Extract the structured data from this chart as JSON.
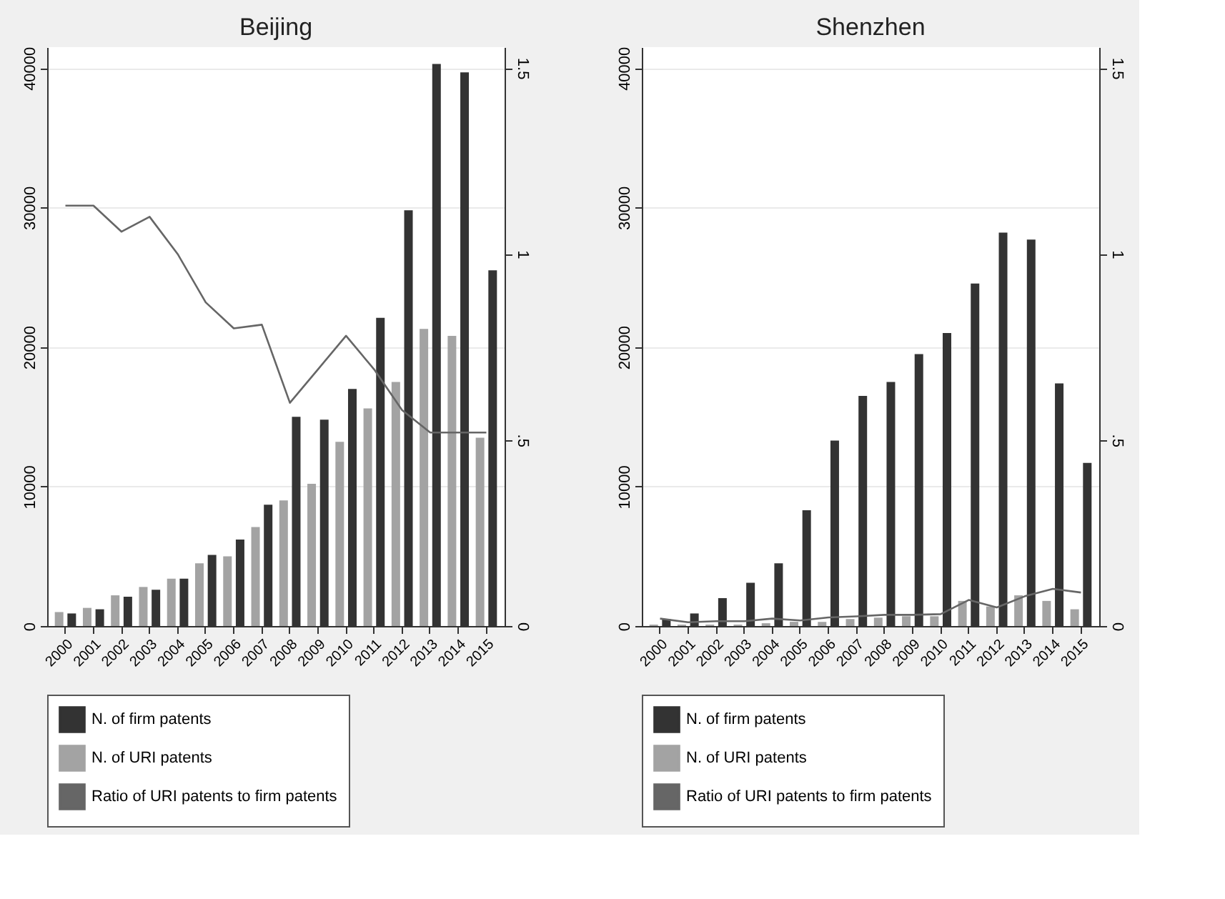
{
  "chart_data": [
    {
      "type": "bar",
      "title": "Beijing",
      "categories": [
        "2000",
        "2001",
        "2002",
        "2003",
        "2004",
        "2005",
        "2006",
        "2007",
        "2008",
        "2009",
        "2010",
        "2011",
        "2012",
        "2013",
        "2014",
        "2015"
      ],
      "series": [
        {
          "name": "N. of firm patents",
          "color": "#333333",
          "values": [
            900,
            1200,
            2100,
            2600,
            3400,
            5100,
            6200,
            8700,
            15000,
            14800,
            17000,
            22100,
            29800,
            40300,
            39700,
            25500
          ]
        },
        {
          "name": "N. of URI patents",
          "color": "#a3a3a3",
          "values": [
            1000,
            1300,
            2200,
            2800,
            3400,
            4500,
            5000,
            7100,
            9000,
            10200,
            13200,
            15600,
            17500,
            21300,
            20800,
            13500
          ]
        },
        {
          "name": "Ratio of URI patents to firm patents",
          "color": "#666666",
          "type": "line",
          "axis": "y2",
          "values": [
            1.13,
            1.13,
            1.06,
            1.1,
            1.0,
            0.87,
            0.8,
            0.81,
            0.6,
            0.69,
            0.78,
            0.69,
            0.58,
            0.52,
            0.52,
            0.52
          ]
        }
      ],
      "ylim": [
        0,
        41500
      ],
      "yticks": [
        0,
        10000,
        20000,
        30000,
        40000
      ],
      "y2lim": [
        0,
        1.556
      ],
      "y2ticks": [
        0,
        {
          "value": 0.5,
          "label": ".5"
        },
        1,
        1.5
      ],
      "grid": "y",
      "legend": "bottom"
    },
    {
      "type": "bar",
      "title": "Shenzhen",
      "categories": [
        "2000",
        "2001",
        "2002",
        "2003",
        "2004",
        "2005",
        "2006",
        "2007",
        "2008",
        "2009",
        "2010",
        "2011",
        "2012",
        "2013",
        "2014",
        "2015"
      ],
      "series": [
        {
          "name": "N. of firm patents",
          "color": "#333333",
          "values": [
            500,
            900,
            2000,
            3100,
            4500,
            8300,
            13300,
            16500,
            17500,
            19500,
            21000,
            24550,
            28200,
            27700,
            17400,
            11700
          ]
        },
        {
          "name": "N. of URI patents",
          "color": "#a3a3a3",
          "values": [
            100,
            100,
            100,
            100,
            200,
            300,
            300,
            500,
            600,
            700,
            700,
            1800,
            1400,
            2200,
            1800,
            1200
          ]
        },
        {
          "name": "Ratio of URI patents to firm patents",
          "color": "#666666",
          "type": "line",
          "axis": "y2",
          "values": [
            0.02,
            0.01,
            0.013,
            0.013,
            0.02,
            0.015,
            0.023,
            0.026,
            0.03,
            0.03,
            0.032,
            0.07,
            0.05,
            0.08,
            0.1,
            0.09
          ]
        }
      ],
      "ylim": [
        0,
        41500
      ],
      "yticks": [
        0,
        10000,
        20000,
        30000,
        40000
      ],
      "y2lim": [
        0,
        1.556
      ],
      "y2ticks": [
        0,
        {
          "value": 0.5,
          "label": ".5"
        },
        1,
        1.5
      ],
      "grid": "y",
      "legend": "bottom"
    }
  ]
}
